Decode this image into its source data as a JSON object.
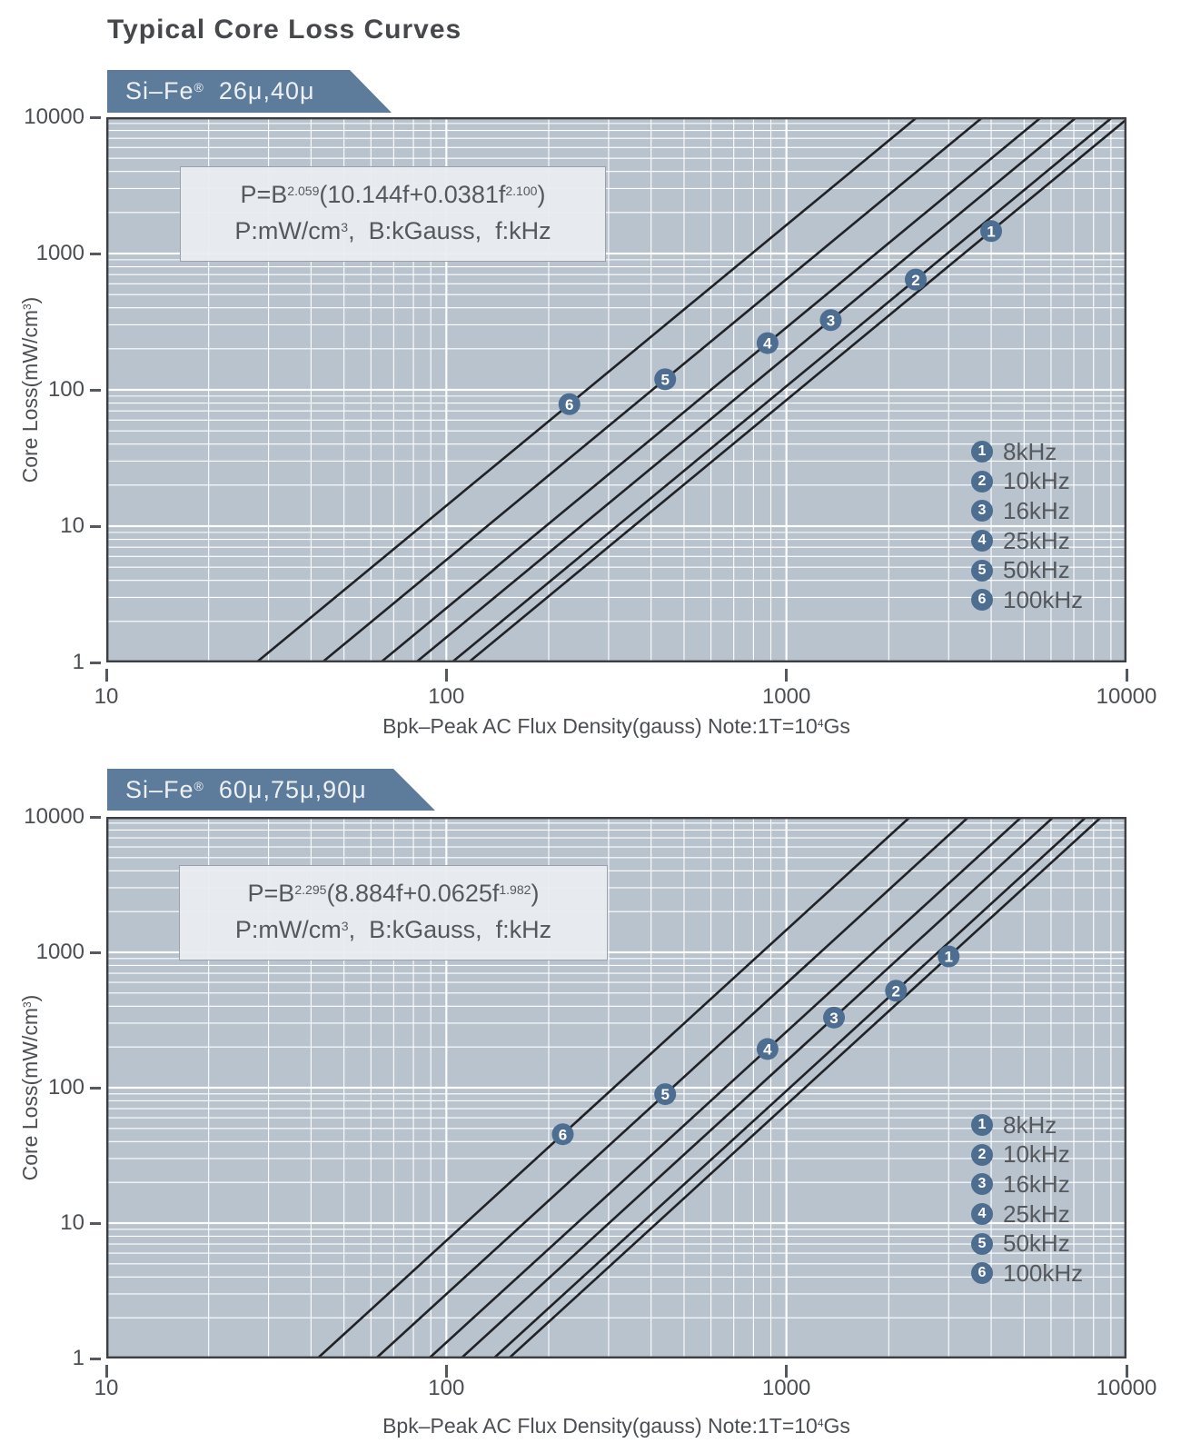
{
  "page": {
    "title": "Typical Core Loss Curves"
  },
  "colors": {
    "plot_background": "#b8c3ce",
    "gridline": "#ffffff",
    "banner": "#5d7b9a",
    "marker_circle": "#4d6e90",
    "curve": "#212226",
    "plot_border": "#3c3e42",
    "text": "#4b4e52",
    "formula_box_bg": "#e9ecf0"
  },
  "chart_data": [
    {
      "type": "line",
      "title": "Si–Fe® 26μ,40μ",
      "banner_parts": [
        {
          "t": "Si–Fe"
        },
        {
          "t": "®",
          "sup": true
        },
        {
          "t": "  26μ,40μ"
        }
      ],
      "formula": "P=B^2.059(10.144f+0.0381f^2.100)",
      "formula_parts": [
        {
          "t": "P=B"
        },
        {
          "t": "2.059",
          "sup": true
        },
        {
          "t": "(10.144f+0.0381f"
        },
        {
          "t": "2.100",
          "sup": true
        },
        {
          "t": ")"
        }
      ],
      "units_parts": [
        {
          "t": "P:mW/cm"
        },
        {
          "t": "3",
          "sup": true
        },
        {
          "t": ",  B:kGauss,  f:kHz"
        }
      ],
      "xlabel": "Bpk-Peak AC Flux Density(gauss) Note:1T=10^4Gs",
      "xlabel_parts": [
        {
          "t": "Bpk–Peak AC Flux Density(gauss) Note:1T=10"
        },
        {
          "t": "4",
          "sup": true
        },
        {
          "t": "Gs"
        }
      ],
      "ylabel": "Core Loss(mW/cm^3)",
      "ylabel_parts": [
        {
          "t": "Core Loss(mW/cm"
        },
        {
          "t": "3",
          "sup": true
        },
        {
          "t": ")"
        }
      ],
      "xlim": [
        10,
        10000
      ],
      "ylim": [
        1,
        10000
      ],
      "x_ticks": [
        10,
        100,
        1000,
        10000
      ],
      "y_ticks": [
        10000,
        1000,
        100,
        10,
        1
      ],
      "grid": "log-log with white minor decade gridlines",
      "legend_position": "lower right",
      "loss_model": {
        "B_exponent": 2.059,
        "f_linear_coef": 10.144,
        "f_power_coef": 0.0381,
        "f_exponent": 2.1,
        "P_unit": "mW/cm3",
        "B_unit": "kGauss",
        "f_unit": "kHz"
      },
      "series": [
        {
          "num": "1",
          "label": "8kHz",
          "f_kHz": 8,
          "marker_B_gauss": 4000
        },
        {
          "num": "2",
          "label": "10kHz",
          "f_kHz": 10,
          "marker_B_gauss": 2400
        },
        {
          "num": "3",
          "label": "16kHz",
          "f_kHz": 16,
          "marker_B_gauss": 1350
        },
        {
          "num": "4",
          "label": "25kHz",
          "f_kHz": 25,
          "marker_B_gauss": 880
        },
        {
          "num": "5",
          "label": "50kHz",
          "f_kHz": 50,
          "marker_B_gauss": 440
        },
        {
          "num": "6",
          "label": "100kHz",
          "f_kHz": 100,
          "marker_B_gauss": 230
        }
      ]
    },
    {
      "type": "line",
      "title": "Si–Fe® 60μ,75μ,90μ",
      "banner_parts": [
        {
          "t": "Si–Fe"
        },
        {
          "t": "®",
          "sup": true
        },
        {
          "t": "  60μ,75μ,90μ"
        }
      ],
      "formula": "P=B^2.295(8.884f+0.0625f^1.982)",
      "formula_parts": [
        {
          "t": "P=B"
        },
        {
          "t": "2.295",
          "sup": true
        },
        {
          "t": "(8.884f+0.0625f"
        },
        {
          "t": "1.982",
          "sup": true
        },
        {
          "t": ")"
        }
      ],
      "units_parts": [
        {
          "t": "P:mW/cm"
        },
        {
          "t": "3",
          "sup": true
        },
        {
          "t": ",  B:kGauss,  f:kHz"
        }
      ],
      "xlabel": "Bpk-Peak AC Flux Density(gauss) Note:1T=10^4Gs",
      "xlabel_parts": [
        {
          "t": "Bpk–Peak AC Flux Density(gauss) Note:1T=10"
        },
        {
          "t": "4",
          "sup": true
        },
        {
          "t": "Gs"
        }
      ],
      "ylabel": "Core Loss(mW/cm^3)",
      "ylabel_parts": [
        {
          "t": "Core Loss(mW/cm"
        },
        {
          "t": "3",
          "sup": true
        },
        {
          "t": ")"
        }
      ],
      "xlim": [
        10,
        10000
      ],
      "ylim": [
        1,
        10000
      ],
      "x_ticks": [
        10,
        100,
        1000,
        10000
      ],
      "y_ticks": [
        10000,
        1000,
        100,
        10,
        1
      ],
      "grid": "log-log with white minor decade gridlines",
      "legend_position": "lower right",
      "loss_model": {
        "B_exponent": 2.295,
        "f_linear_coef": 8.884,
        "f_power_coef": 0.0625,
        "f_exponent": 1.982,
        "P_unit": "mW/cm3",
        "B_unit": "kGauss",
        "f_unit": "kHz"
      },
      "series": [
        {
          "num": "1",
          "label": "8kHz",
          "f_kHz": 8,
          "marker_B_gauss": 3000
        },
        {
          "num": "2",
          "label": "10kHz",
          "f_kHz": 10,
          "marker_B_gauss": 2100
        },
        {
          "num": "3",
          "label": "16kHz",
          "f_kHz": 16,
          "marker_B_gauss": 1380
        },
        {
          "num": "4",
          "label": "25kHz",
          "f_kHz": 25,
          "marker_B_gauss": 880
        },
        {
          "num": "5",
          "label": "50kHz",
          "f_kHz": 50,
          "marker_B_gauss": 440
        },
        {
          "num": "6",
          "label": "100kHz",
          "f_kHz": 100,
          "marker_B_gauss": 220
        }
      ]
    }
  ]
}
